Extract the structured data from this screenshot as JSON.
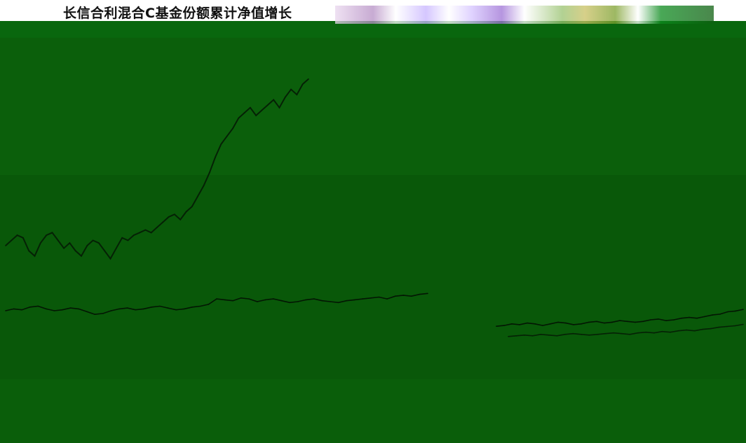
{
  "title": "长信合利混合C基金份额累计净值增长",
  "colors": {
    "plot_bg": "#0b5f0b",
    "bottom_bg": "#0a5e0a",
    "series_1": "#052105",
    "series_2": "#031603"
  },
  "chart_data": {
    "type": "line",
    "title": "长信合利混合C基金份额累计净值增长",
    "xlabel": "",
    "ylabel": "",
    "grid": false,
    "legend": "bottom-right",
    "series": [
      {
        "values": [
          0.32,
          0.34,
          0.36,
          0.35,
          0.3,
          0.28,
          0.33,
          0.36,
          0.37,
          0.34,
          0.31,
          0.33,
          0.3,
          0.28,
          0.32,
          0.34,
          0.33,
          0.3,
          0.27,
          0.31,
          0.35,
          0.34,
          0.36,
          0.37,
          0.38,
          0.37,
          0.39,
          0.41,
          0.43,
          0.44,
          0.42,
          0.45,
          0.47,
          0.51,
          0.55,
          0.6,
          0.66,
          0.71,
          0.74,
          0.77,
          0.81,
          0.83,
          0.85,
          0.82,
          0.84,
          0.86,
          0.88,
          0.85,
          0.89,
          0.92,
          0.9,
          0.94,
          0.96
        ]
      },
      {
        "values": [
          0.2,
          0.22,
          0.21,
          0.24,
          0.25,
          0.22,
          0.2,
          0.21,
          0.23,
          0.22,
          0.19,
          0.16,
          0.17,
          0.2,
          0.22,
          0.23,
          0.21,
          0.22,
          0.24,
          0.25,
          0.23,
          0.21,
          0.22,
          0.24,
          0.25,
          0.27,
          0.33,
          0.32,
          0.31,
          0.34,
          0.33,
          0.3,
          0.32,
          0.33,
          0.31,
          0.29,
          0.3,
          0.32,
          0.33,
          0.31,
          0.3,
          0.29,
          0.31,
          0.32,
          0.33,
          0.34,
          0.35,
          0.33,
          0.36,
          0.37,
          0.36,
          0.38,
          0.39
        ]
      },
      {
        "values": [
          0.12,
          0.13,
          0.15,
          0.14,
          0.16,
          0.15,
          0.13,
          0.15,
          0.17,
          0.16,
          0.14,
          0.15,
          0.17,
          0.18,
          0.16,
          0.17,
          0.19,
          0.18,
          0.17,
          0.18,
          0.2,
          0.21,
          0.19,
          0.2,
          0.22,
          0.23,
          0.22,
          0.24,
          0.26,
          0.27,
          0.3,
          0.31,
          0.33
        ]
      },
      {
        "values": [
          0.09,
          0.1,
          0.11,
          0.1,
          0.12,
          0.11,
          0.1,
          0.12,
          0.13,
          0.12,
          0.11,
          0.12,
          0.13,
          0.14,
          0.13,
          0.12,
          0.14,
          0.15,
          0.14,
          0.16,
          0.15,
          0.17,
          0.18,
          0.17,
          0.19,
          0.2,
          0.22,
          0.23,
          0.24,
          0.26
        ]
      }
    ],
    "ylim": [
      0,
      1
    ]
  }
}
